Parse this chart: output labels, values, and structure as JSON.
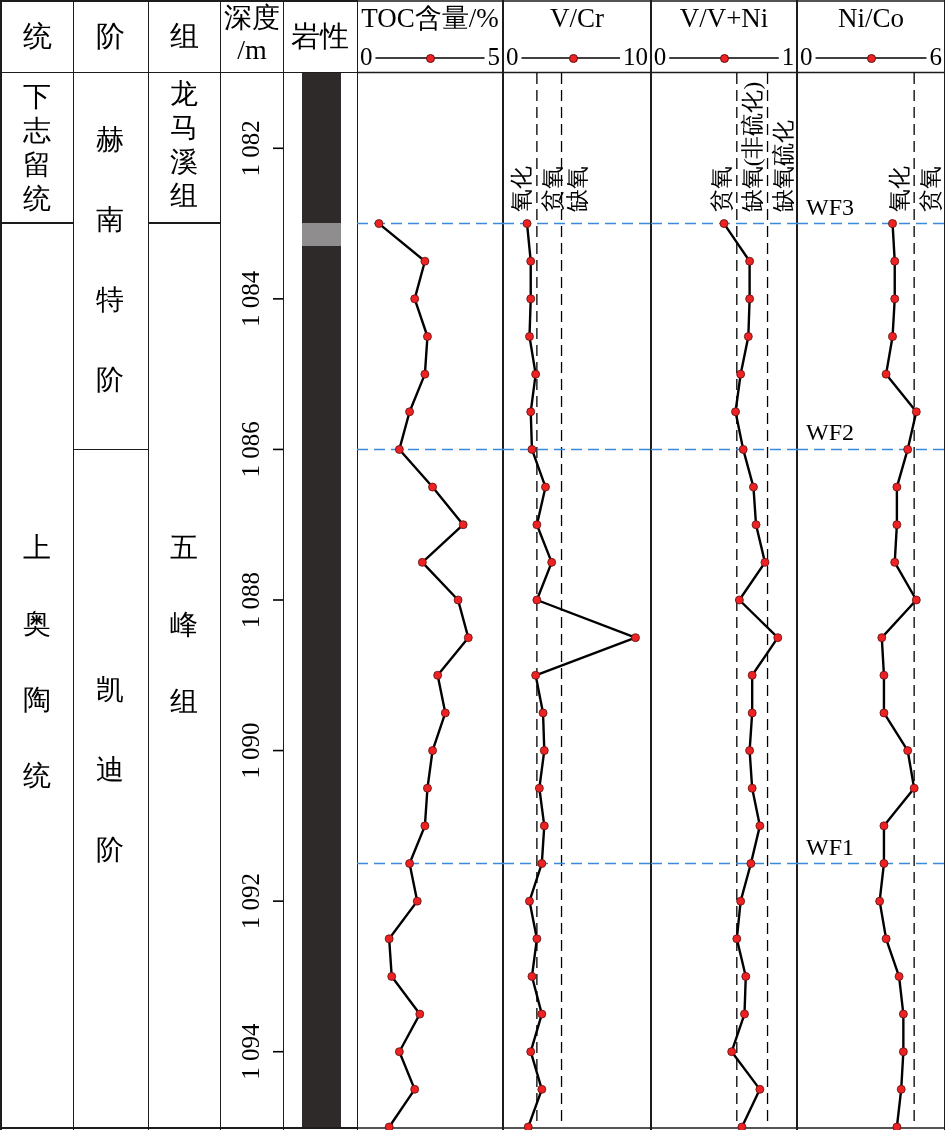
{
  "chart_data": [
    {
      "type": "other",
      "annotations": [
        "统",
        "阶",
        "组",
        "下志留统",
        "赫南特阶",
        "龙马溪组",
        "上奥陶统",
        "凯迪阶",
        "五峰组"
      ]
    },
    {
      "type": "line",
      "xlabel": "TOC含量/%",
      "ylabel": "深度/m",
      "annotations": [
        "岩性"
      ],
      "x": [
        0.5,
        2.3,
        1.9,
        2.4,
        2.3,
        1.7,
        1.3,
        2.6,
        3.8,
        2.2,
        3.6,
        4.0,
        2.8,
        3.1,
        2.6,
        2.4,
        2.3,
        1.7,
        2.0,
        0.9,
        1.0,
        2.1,
        1.3,
        1.9,
        0.9
      ],
      "values": [
        1083,
        1083.5,
        1084,
        1084.5,
        1085,
        1085.5,
        1086,
        1086.5,
        1087,
        1087.5,
        1088,
        1088.5,
        1089,
        1089.5,
        1090,
        1090.5,
        1091,
        1091.5,
        1092,
        1092.5,
        1093,
        1093.5,
        1094,
        1094.5,
        1095
      ],
      "color": "#000000",
      "colors": [
        "#ee2222",
        "#ee2222",
        "#ee2222",
        "#ee2222",
        "#ee2222",
        "#ee2222",
        "#ee2222",
        "#ee2222",
        "#ee2222",
        "#ee2222",
        "#ee2222",
        "#ee2222",
        "#ee2222",
        "#ee2222",
        "#ee2222",
        "#ee2222",
        "#ee2222",
        "#ee2222",
        "#ee2222",
        "#ee2222",
        "#ee2222",
        "#ee2222",
        "#ee2222",
        "#ee2222",
        "#ee2222"
      ],
      "marker": "circle",
      "xlim": [
        -0.36,
        5.36
      ],
      "xticks": [
        0,
        5
      ],
      "ylim": [
        1095,
        1081
      ],
      "yticks": [
        {
          "value": 1082,
          "label": "1 082"
        },
        {
          "value": 1084,
          "label": "1 084"
        },
        {
          "value": 1086,
          "label": "1 086"
        },
        {
          "value": 1088,
          "label": "1 088"
        },
        {
          "value": 1090,
          "label": "1 090"
        },
        {
          "value": 1092,
          "label": "1 092"
        },
        {
          "value": 1094,
          "label": "1 094"
        }
      ],
      "ref_lines": [
        {
          "axis": "y",
          "value": 1083,
          "color": "#3b8ad9",
          "line_style": "dashed"
        },
        {
          "axis": "y",
          "value": 1086,
          "color": "#3b8ad9",
          "line_style": "dashed"
        },
        {
          "axis": "y",
          "value": 1091.5,
          "color": "#3b8ad9",
          "line_style": "dashed"
        }
      ]
    },
    {
      "type": "line",
      "xlabel": "V/Cr",
      "tick_labels": "x",
      "x": [
        1.2,
        1.5,
        1.5,
        1.4,
        1.9,
        1.5,
        1.6,
        2.7,
        2.0,
        3.2,
        2.0,
        10,
        1.9,
        2.5,
        2.6,
        2.2,
        2.6,
        2.4,
        1.4,
        2.0,
        1.6,
        2.4,
        1.5,
        2.4,
        1.3
      ],
      "values": [
        1083,
        1083.5,
        1084,
        1084.5,
        1085,
        1085.5,
        1086,
        1086.5,
        1087,
        1087.5,
        1088,
        1088.5,
        1089,
        1089.5,
        1090,
        1090.5,
        1091,
        1091.5,
        1092,
        1092.5,
        1093,
        1093.5,
        1094,
        1094.5,
        1095
      ],
      "color": "#000000",
      "colors": [
        "#ee2222",
        "#ee2222",
        "#ee2222",
        "#ee2222",
        "#ee2222",
        "#ee2222",
        "#ee2222",
        "#ee2222",
        "#ee2222",
        "#ee2222",
        "#ee2222",
        "#ee2222",
        "#ee2222",
        "#ee2222",
        "#ee2222",
        "#ee2222",
        "#ee2222",
        "#ee2222",
        "#ee2222",
        "#ee2222",
        "#ee2222",
        "#ee2222",
        "#ee2222",
        "#ee2222",
        "#ee2222"
      ],
      "marker": "circle",
      "xlim": [
        -0.75,
        11.26
      ],
      "xticks": [
        0,
        10
      ],
      "ylim": [
        1095,
        1081
      ],
      "ref_lines": [
        {
          "axis": "x",
          "value": 2,
          "color": "#000000",
          "line_style": "dashed"
        },
        {
          "axis": "x",
          "value": 4,
          "color": "#000000",
          "line_style": "dashed"
        },
        {
          "axis": "y",
          "value": 1083,
          "color": "#3b8ad9",
          "line_style": "dashed"
        },
        {
          "axis": "y",
          "value": 1086,
          "color": "#3b8ad9",
          "line_style": "dashed"
        },
        {
          "axis": "y",
          "value": 1091.5,
          "color": "#3b8ad9",
          "line_style": "dashed"
        }
      ],
      "annotations": [
        "氧化",
        "贫氧",
        "缺氧"
      ]
    },
    {
      "type": "line",
      "xlabel": "V/V+Ni",
      "tick_labels": "x",
      "x": [
        0.5,
        0.7,
        0.7,
        0.69,
        0.63,
        0.59,
        0.65,
        0.73,
        0.75,
        0.82,
        0.62,
        0.92,
        0.72,
        0.72,
        0.7,
        0.72,
        0.78,
        0.71,
        0.63,
        0.6,
        0.67,
        0.66,
        0.56,
        0.78,
        0.64
      ],
      "values": [
        1083,
        1083.5,
        1084,
        1084.5,
        1085,
        1085.5,
        1086,
        1086.5,
        1087,
        1087.5,
        1088,
        1088.5,
        1089,
        1089.5,
        1090,
        1090.5,
        1091,
        1091.5,
        1092,
        1092.5,
        1093,
        1093.5,
        1094,
        1094.5,
        1095
      ],
      "color": "#000000",
      "colors": [
        "#ee2222",
        "#ee2222",
        "#ee2222",
        "#ee2222",
        "#ee2222",
        "#ee2222",
        "#ee2222",
        "#ee2222",
        "#ee2222",
        "#ee2222",
        "#ee2222",
        "#ee2222",
        "#ee2222",
        "#ee2222",
        "#ee2222",
        "#ee2222",
        "#ee2222",
        "#ee2222",
        "#ee2222",
        "#ee2222",
        "#ee2222",
        "#ee2222",
        "#ee2222",
        "#ee2222",
        "#ee2222"
      ],
      "marker": "circle",
      "xlim": [
        -0.07,
        1.07
      ],
      "xticks": [
        0,
        1
      ],
      "ylim": [
        1095,
        1081
      ],
      "ref_lines": [
        {
          "axis": "x",
          "value": 0.6,
          "color": "#000000",
          "line_style": "dashed"
        },
        {
          "axis": "x",
          "value": 0.84,
          "color": "#000000",
          "line_style": "dashed"
        },
        {
          "axis": "y",
          "value": 1083,
          "color": "#3b8ad9",
          "line_style": "dashed"
        },
        {
          "axis": "y",
          "value": 1086,
          "color": "#3b8ad9",
          "line_style": "dashed"
        },
        {
          "axis": "y",
          "value": 1091.5,
          "color": "#3b8ad9",
          "line_style": "dashed"
        }
      ],
      "annotations": [
        "贫氧",
        "缺氧(非硫化)",
        "缺氧硫化"
      ]
    },
    {
      "type": "line",
      "xlabel": "Ni/Co",
      "tick_labels": "x",
      "x": [
        4.0,
        4.1,
        4.1,
        4.0,
        3.7,
        5.1,
        4.7,
        4.2,
        4.2,
        4.1,
        5.1,
        3.5,
        3.6,
        3.6,
        4.7,
        5.0,
        3.6,
        3.6,
        3.4,
        3.7,
        4.3,
        4.5,
        4.5,
        4.4,
        4.2
      ],
      "values": [
        1083,
        1083.5,
        1084,
        1084.5,
        1085,
        1085.5,
        1086,
        1086.5,
        1087,
        1087.5,
        1088,
        1088.5,
        1089,
        1089.5,
        1090,
        1090.5,
        1091,
        1091.5,
        1092,
        1092.5,
        1093,
        1093.5,
        1094,
        1094.5,
        1095
      ],
      "color": "#000000",
      "colors": [
        "#ee2222",
        "#ee2222",
        "#ee2222",
        "#ee2222",
        "#ee2222",
        "#ee2222",
        "#ee2222",
        "#ee2222",
        "#ee2222",
        "#ee2222",
        "#ee2222",
        "#ee2222",
        "#ee2222",
        "#ee2222",
        "#ee2222",
        "#ee2222",
        "#ee2222",
        "#ee2222",
        "#ee2222",
        "#ee2222",
        "#ee2222",
        "#ee2222",
        "#ee2222",
        "#ee2222",
        "#ee2222"
      ],
      "marker": "circle",
      "xlim": [
        -0.43,
        6.43
      ],
      "xticks": [
        0,
        6
      ],
      "ylim": [
        1095,
        1081
      ],
      "ref_lines": [
        {
          "axis": "x",
          "value": 5,
          "color": "#000000",
          "line_style": "dashed"
        },
        {
          "axis": "y",
          "value": 1083,
          "color": "#3b8ad9",
          "line_style": "dashed",
          "label": "WF3"
        },
        {
          "axis": "y",
          "value": 1086,
          "color": "#3b8ad9",
          "line_style": "dashed",
          "label": "WF2"
        },
        {
          "axis": "y",
          "value": 1091.5,
          "color": "#3b8ad9",
          "line_style": "dashed",
          "label": "WF1"
        }
      ],
      "annotations": [
        "氧化",
        "贫氧"
      ]
    }
  ]
}
